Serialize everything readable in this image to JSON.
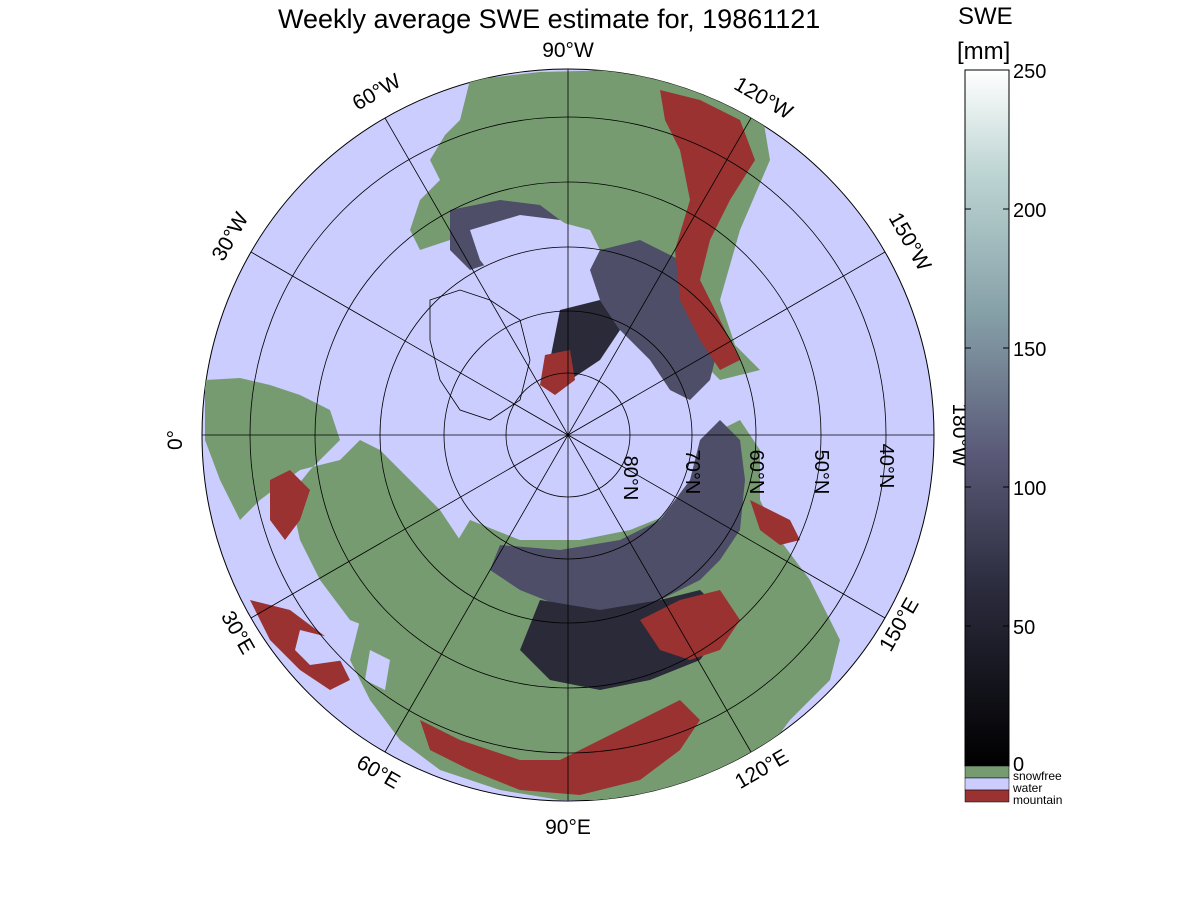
{
  "title": "Weekly average SWE estimate for, 19861121",
  "colorbar": {
    "title": "SWE",
    "unit": "[mm]",
    "ticks": [
      "250",
      "200",
      "150",
      "100",
      "50",
      "0"
    ],
    "range": [
      0,
      250
    ],
    "categories": [
      {
        "label": "snowfree",
        "color": "#779b70"
      },
      {
        "label": "water",
        "color": "#cccdff"
      },
      {
        "label": "mountain",
        "color": "#993230"
      }
    ]
  },
  "longitude_labels": {
    "lon_90w": "90°W",
    "lon_120w": "120°W",
    "lon_150w": "150°W",
    "lon_180w": "180°W",
    "lon_150e": "150°E",
    "lon_120e": "120°E",
    "lon_90e": "90°E",
    "lon_60e": "60°E",
    "lon_30e": "30°E",
    "lon_0": "0°",
    "lon_30w": "30°W",
    "lon_60w": "60°W"
  },
  "latitude_labels": [
    "80°N",
    "70°N",
    "60°N",
    "50°N",
    "40°N"
  ],
  "colors": {
    "water": "#cccdff",
    "snowfree": "#779b70",
    "mountain": "#993230",
    "snow_low": "#202028",
    "snow_mid": "#4e4e68",
    "snow_high": "#6a6a88"
  }
}
